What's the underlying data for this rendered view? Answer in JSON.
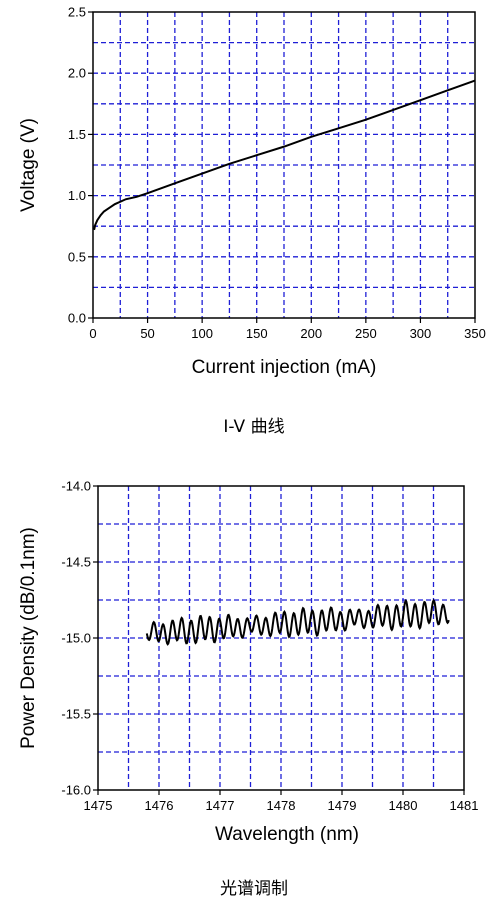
{
  "chart_data": [
    {
      "type": "line",
      "caption": "I-V 曲线",
      "xlabel": "Current injection (mA)",
      "ylabel": "Voltage (V)",
      "xlim": [
        0,
        350
      ],
      "ylim": [
        0.0,
        2.5
      ],
      "x_ticks": [
        0,
        50,
        100,
        150,
        200,
        250,
        300,
        350
      ],
      "x_tick_labels": [
        "0",
        "50",
        "100",
        "150",
        "200",
        "250",
        "300",
        "350"
      ],
      "y_ticks": [
        0.0,
        0.5,
        1.0,
        1.5,
        2.0,
        2.5
      ],
      "y_tick_labels": [
        "0.0",
        "0.5",
        "1.0",
        "1.5",
        "2.0",
        "2.5"
      ],
      "x_grid": [
        25,
        50,
        75,
        100,
        125,
        150,
        175,
        200,
        225,
        250,
        275,
        300,
        325
      ],
      "y_grid": [
        0.25,
        0.5,
        0.75,
        1.0,
        1.25,
        1.5,
        1.75,
        2.0,
        2.25
      ],
      "grid": true,
      "grid_color": "#1f1fd6",
      "series": [
        {
          "x": [
            1,
            2,
            4,
            7,
            10,
            15,
            20,
            30,
            40,
            50,
            75,
            100,
            125,
            150,
            175,
            200,
            225,
            250,
            275,
            300,
            325,
            350
          ],
          "y": [
            0.72,
            0.76,
            0.8,
            0.84,
            0.87,
            0.9,
            0.93,
            0.97,
            0.99,
            1.02,
            1.1,
            1.18,
            1.26,
            1.33,
            1.4,
            1.48,
            1.55,
            1.62,
            1.7,
            1.78,
            1.86,
            1.94
          ]
        }
      ]
    },
    {
      "type": "line",
      "caption": "光谱调制",
      "xlabel": "Wavelength (nm)",
      "ylabel": "Power Density (dB/0.1nm)",
      "xlim": [
        1475,
        1481
      ],
      "ylim": [
        -16.0,
        -14.0
      ],
      "x_ticks": [
        1475,
        1476,
        1477,
        1478,
        1479,
        1480,
        1481
      ],
      "x_tick_labels": [
        "1475",
        "1476",
        "1477",
        "1478",
        "1479",
        "1480",
        "1481"
      ],
      "y_ticks": [
        -16.0,
        -15.5,
        -15.0,
        -14.5,
        -14.0
      ],
      "y_tick_labels": [
        "-16.0",
        "-15.5",
        "-15.0",
        "-14.5",
        "-14.0"
      ],
      "x_grid": [
        1475.5,
        1476,
        1476.5,
        1477,
        1477.5,
        1478,
        1478.5,
        1479,
        1479.5,
        1480,
        1480.5
      ],
      "y_grid": [
        -15.75,
        -15.5,
        -15.25,
        -15.0,
        -14.75,
        -14.5,
        -14.25
      ],
      "grid": true,
      "grid_color": "#1f1fd6",
      "series": [
        {
          "x_start": 1475.8,
          "x_end": 1480.75,
          "ripple_period_nm": 0.153,
          "baseline_start_dB": -14.97,
          "baseline_end_dB": -14.83,
          "ripple_amplitude_dB": [
            0.05,
            0.08
          ]
        }
      ]
    }
  ]
}
